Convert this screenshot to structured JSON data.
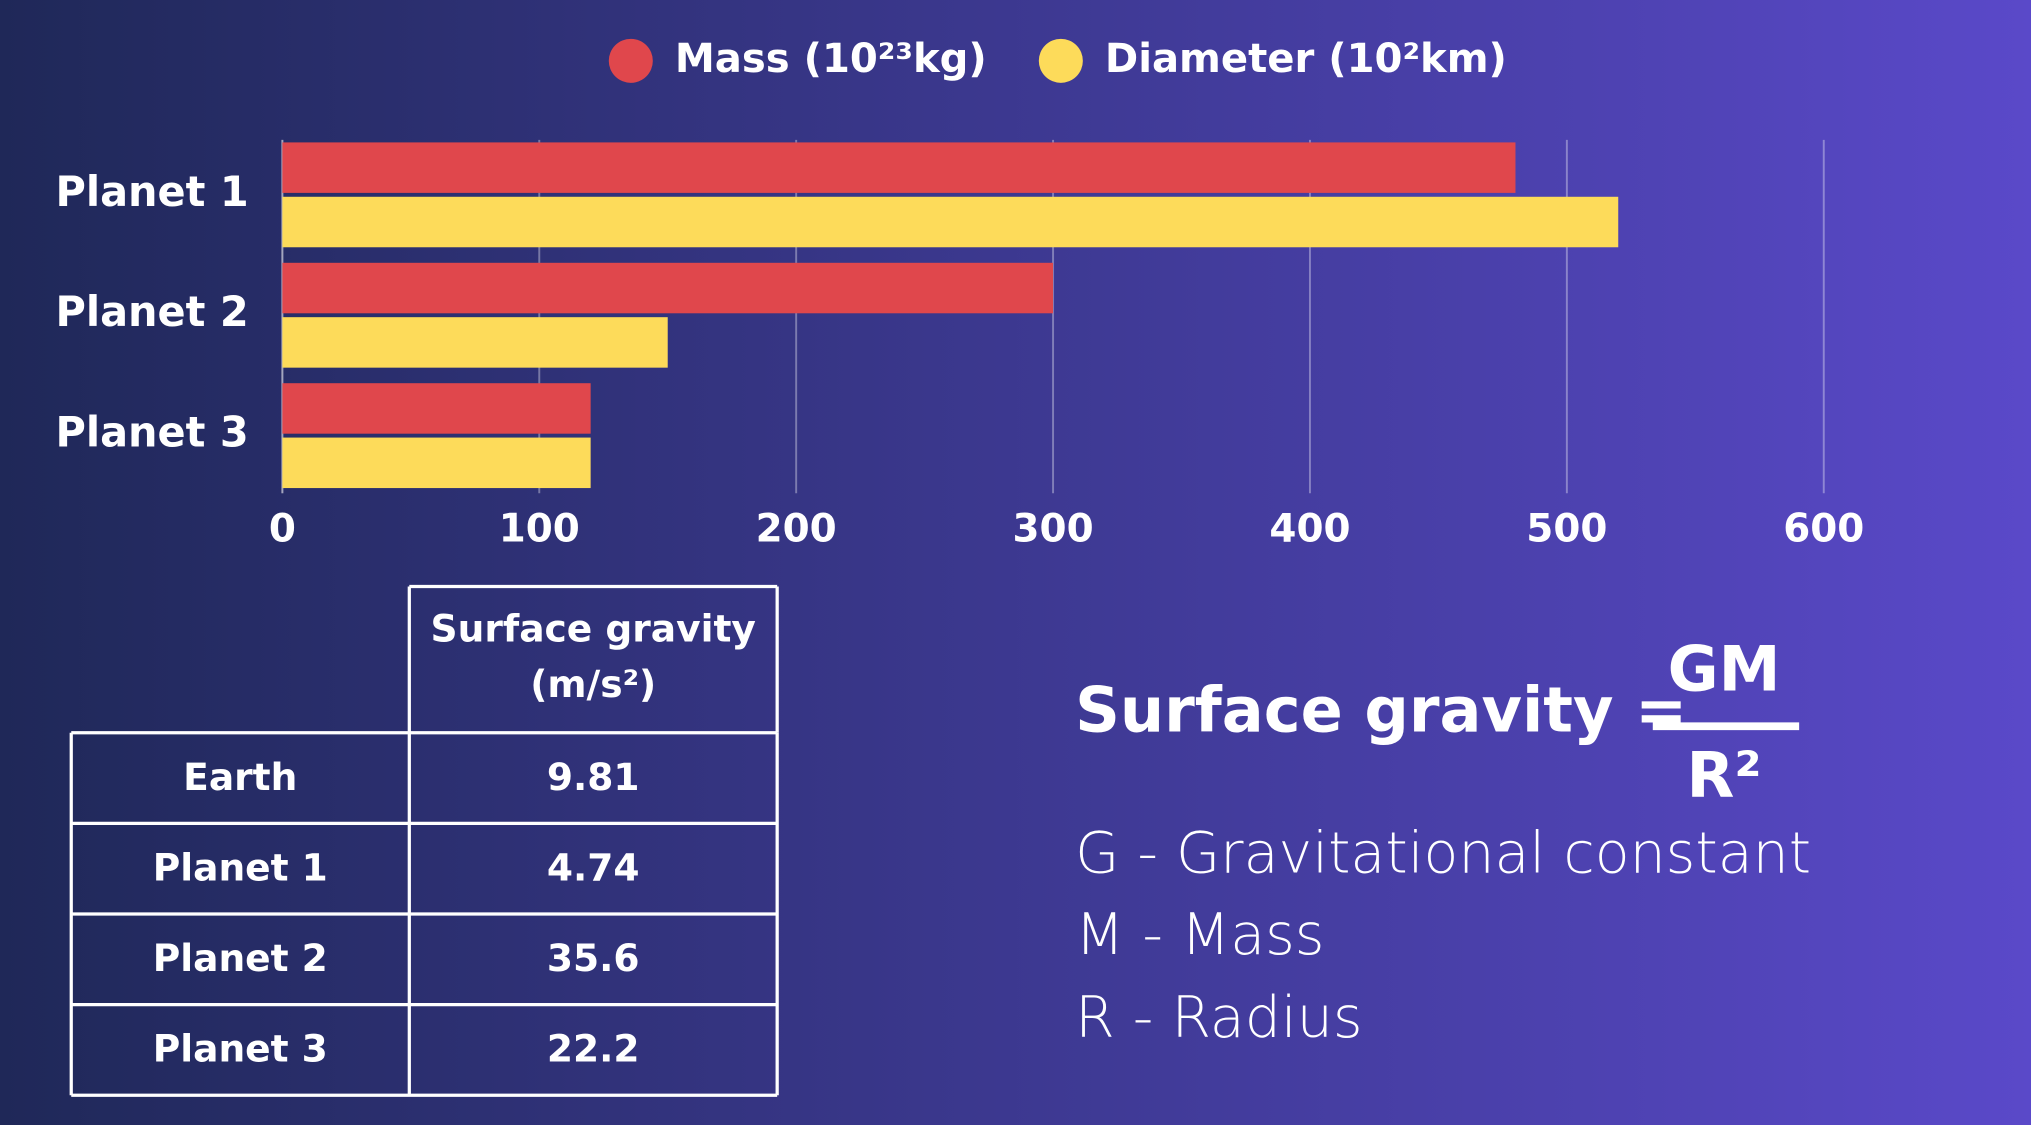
{
  "chart_data": {
    "type": "bar",
    "orientation": "horizontal",
    "categories": [
      "Planet 1",
      "Planet 2",
      "Planet 3"
    ],
    "series": [
      {
        "name": "Mass (10²³kg)",
        "color": "#e0474c",
        "values": [
          480,
          300,
          120
        ]
      },
      {
        "name": "Diameter (10²km)",
        "color": "#fddb5a",
        "values": [
          520,
          150,
          120
        ]
      }
    ],
    "xlim": [
      0,
      600
    ],
    "xticks": [
      0,
      100,
      200,
      300,
      400,
      500,
      600
    ],
    "grid": true,
    "legend": "top"
  },
  "table": {
    "columns": [
      "Surface gravity (m/s²)"
    ],
    "rows": [
      [
        "Earth",
        "9.81"
      ],
      [
        "Planet 1",
        "4.74"
      ],
      [
        "Planet 2",
        "35.6"
      ],
      [
        "Planet 3",
        "22.2"
      ]
    ]
  },
  "formula": {
    "lhs": "Surface gravity =",
    "numerator": "GM",
    "denominator": "R²",
    "legend": [
      "G - Gravitational constant",
      "M - Mass",
      "R - Radius"
    ]
  }
}
